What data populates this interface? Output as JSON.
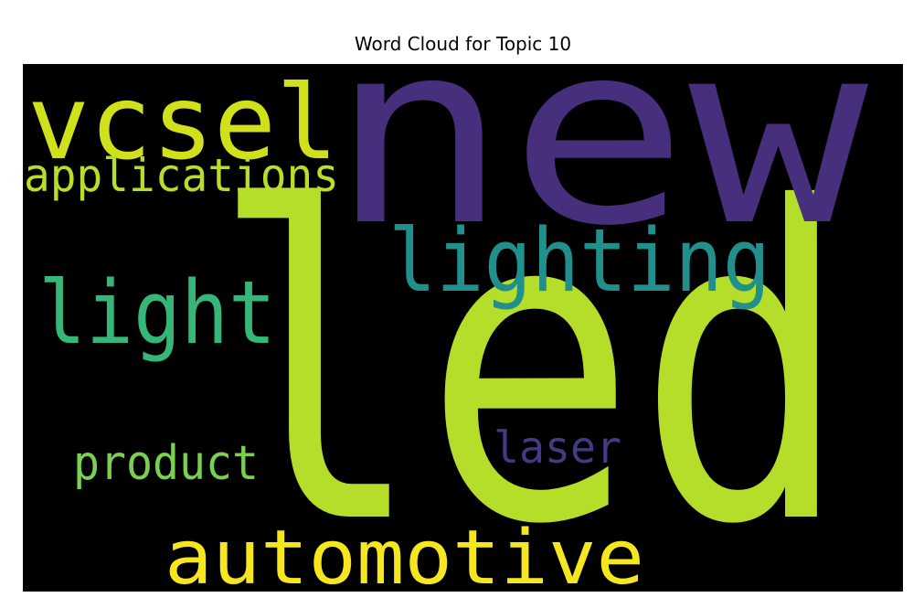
{
  "chart_data": {
    "type": "wordcloud",
    "title": "Word Cloud for Topic 10",
    "background": "#000000",
    "words": [
      {
        "text": "led",
        "color": "#b5de2b"
      },
      {
        "text": "new",
        "color": "#472f7d"
      },
      {
        "text": "vcsel",
        "color": "#d0e11c"
      },
      {
        "text": "lighting",
        "color": "#21908c"
      },
      {
        "text": "light",
        "color": "#35b779"
      },
      {
        "text": "automotive",
        "color": "#f5e61e"
      },
      {
        "text": "applications",
        "color": "#b8de29"
      },
      {
        "text": "product",
        "color": "#7ad151"
      },
      {
        "text": "laser",
        "color": "#443a83"
      }
    ]
  }
}
